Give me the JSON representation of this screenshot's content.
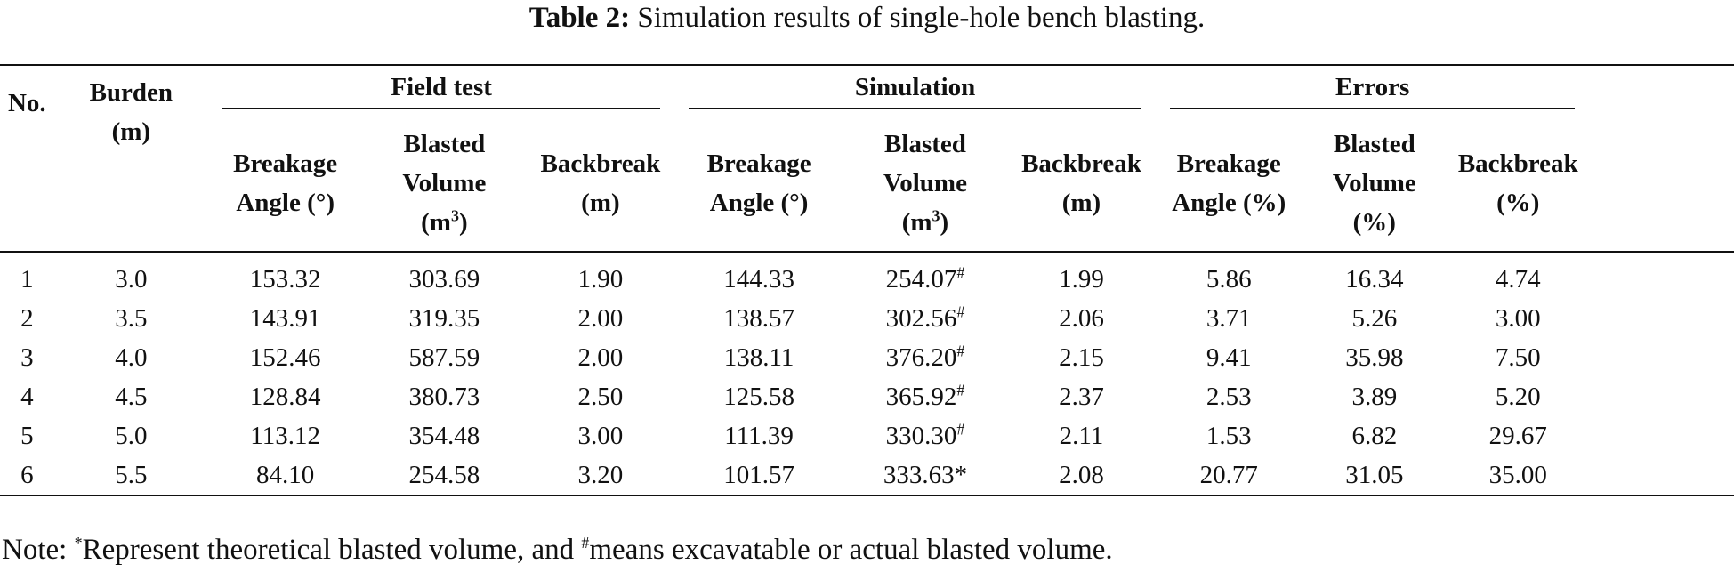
{
  "caption": {
    "label": "Table 2:",
    "text": "Simulation results of single-hole bench blasting."
  },
  "header": {
    "no": "No.",
    "burden_line1": "Burden",
    "burden_line2": "(m)",
    "groups": [
      "Field test",
      "Simulation",
      "Errors"
    ],
    "sub": {
      "breakage_line1": "Breakage",
      "breakage_deg_line2": "Angle (°)",
      "breakage_pct_line2": "Angle (%)",
      "blasted_line1": "Blasted",
      "blasted_line2": "Volume",
      "blasted_unit_pre": "(m",
      "blasted_unit_exp": "3",
      "blasted_unit_post": ")",
      "blasted_pct_line3": "(%)",
      "backbreak_line1": "Backbreak",
      "backbreak_m_line2": "(m)",
      "backbreak_pct_line2": "(%)"
    }
  },
  "rows": [
    {
      "no": "1",
      "burden": "3.0",
      "ft_angle": "153.32",
      "ft_volume": "303.69",
      "ft_backbreak": "1.90",
      "sim_angle": "144.33",
      "sim_volume": "254.07",
      "sim_volume_mark": "#",
      "sim_backbreak": "1.99",
      "err_angle": "5.86",
      "err_volume": "16.34",
      "err_backbreak": "4.74"
    },
    {
      "no": "2",
      "burden": "3.5",
      "ft_angle": "143.91",
      "ft_volume": "319.35",
      "ft_backbreak": "2.00",
      "sim_angle": "138.57",
      "sim_volume": "302.56",
      "sim_volume_mark": "#",
      "sim_backbreak": "2.06",
      "err_angle": "3.71",
      "err_volume": "5.26",
      "err_backbreak": "3.00"
    },
    {
      "no": "3",
      "burden": "4.0",
      "ft_angle": "152.46",
      "ft_volume": "587.59",
      "ft_backbreak": "2.00",
      "sim_angle": "138.11",
      "sim_volume": "376.20",
      "sim_volume_mark": "#",
      "sim_backbreak": "2.15",
      "err_angle": "9.41",
      "err_volume": "35.98",
      "err_backbreak": "7.50"
    },
    {
      "no": "4",
      "burden": "4.5",
      "ft_angle": "128.84",
      "ft_volume": "380.73",
      "ft_backbreak": "2.50",
      "sim_angle": "125.58",
      "sim_volume": "365.92",
      "sim_volume_mark": "#",
      "sim_backbreak": "2.37",
      "err_angle": "2.53",
      "err_volume": "3.89",
      "err_backbreak": "5.20"
    },
    {
      "no": "5",
      "burden": "5.0",
      "ft_angle": "113.12",
      "ft_volume": "354.48",
      "ft_backbreak": "3.00",
      "sim_angle": "111.39",
      "sim_volume": "330.30",
      "sim_volume_mark": "#",
      "sim_backbreak": "2.11",
      "err_angle": "1.53",
      "err_volume": "6.82",
      "err_backbreak": "29.67"
    },
    {
      "no": "6",
      "burden": "5.5",
      "ft_angle": "84.10",
      "ft_volume": "254.58",
      "ft_backbreak": "3.20",
      "sim_angle": "101.57",
      "sim_volume": "333.63*",
      "sim_volume_mark": "",
      "sim_backbreak": "2.08",
      "err_angle": "20.77",
      "err_volume": "31.05",
      "err_backbreak": "35.00"
    }
  ],
  "note": {
    "prefix": "Note: ",
    "star": "*",
    "text1": "Represent theoretical blasted volume, and ",
    "hash": "#",
    "text2": "means excavatable or actual blasted volume."
  }
}
